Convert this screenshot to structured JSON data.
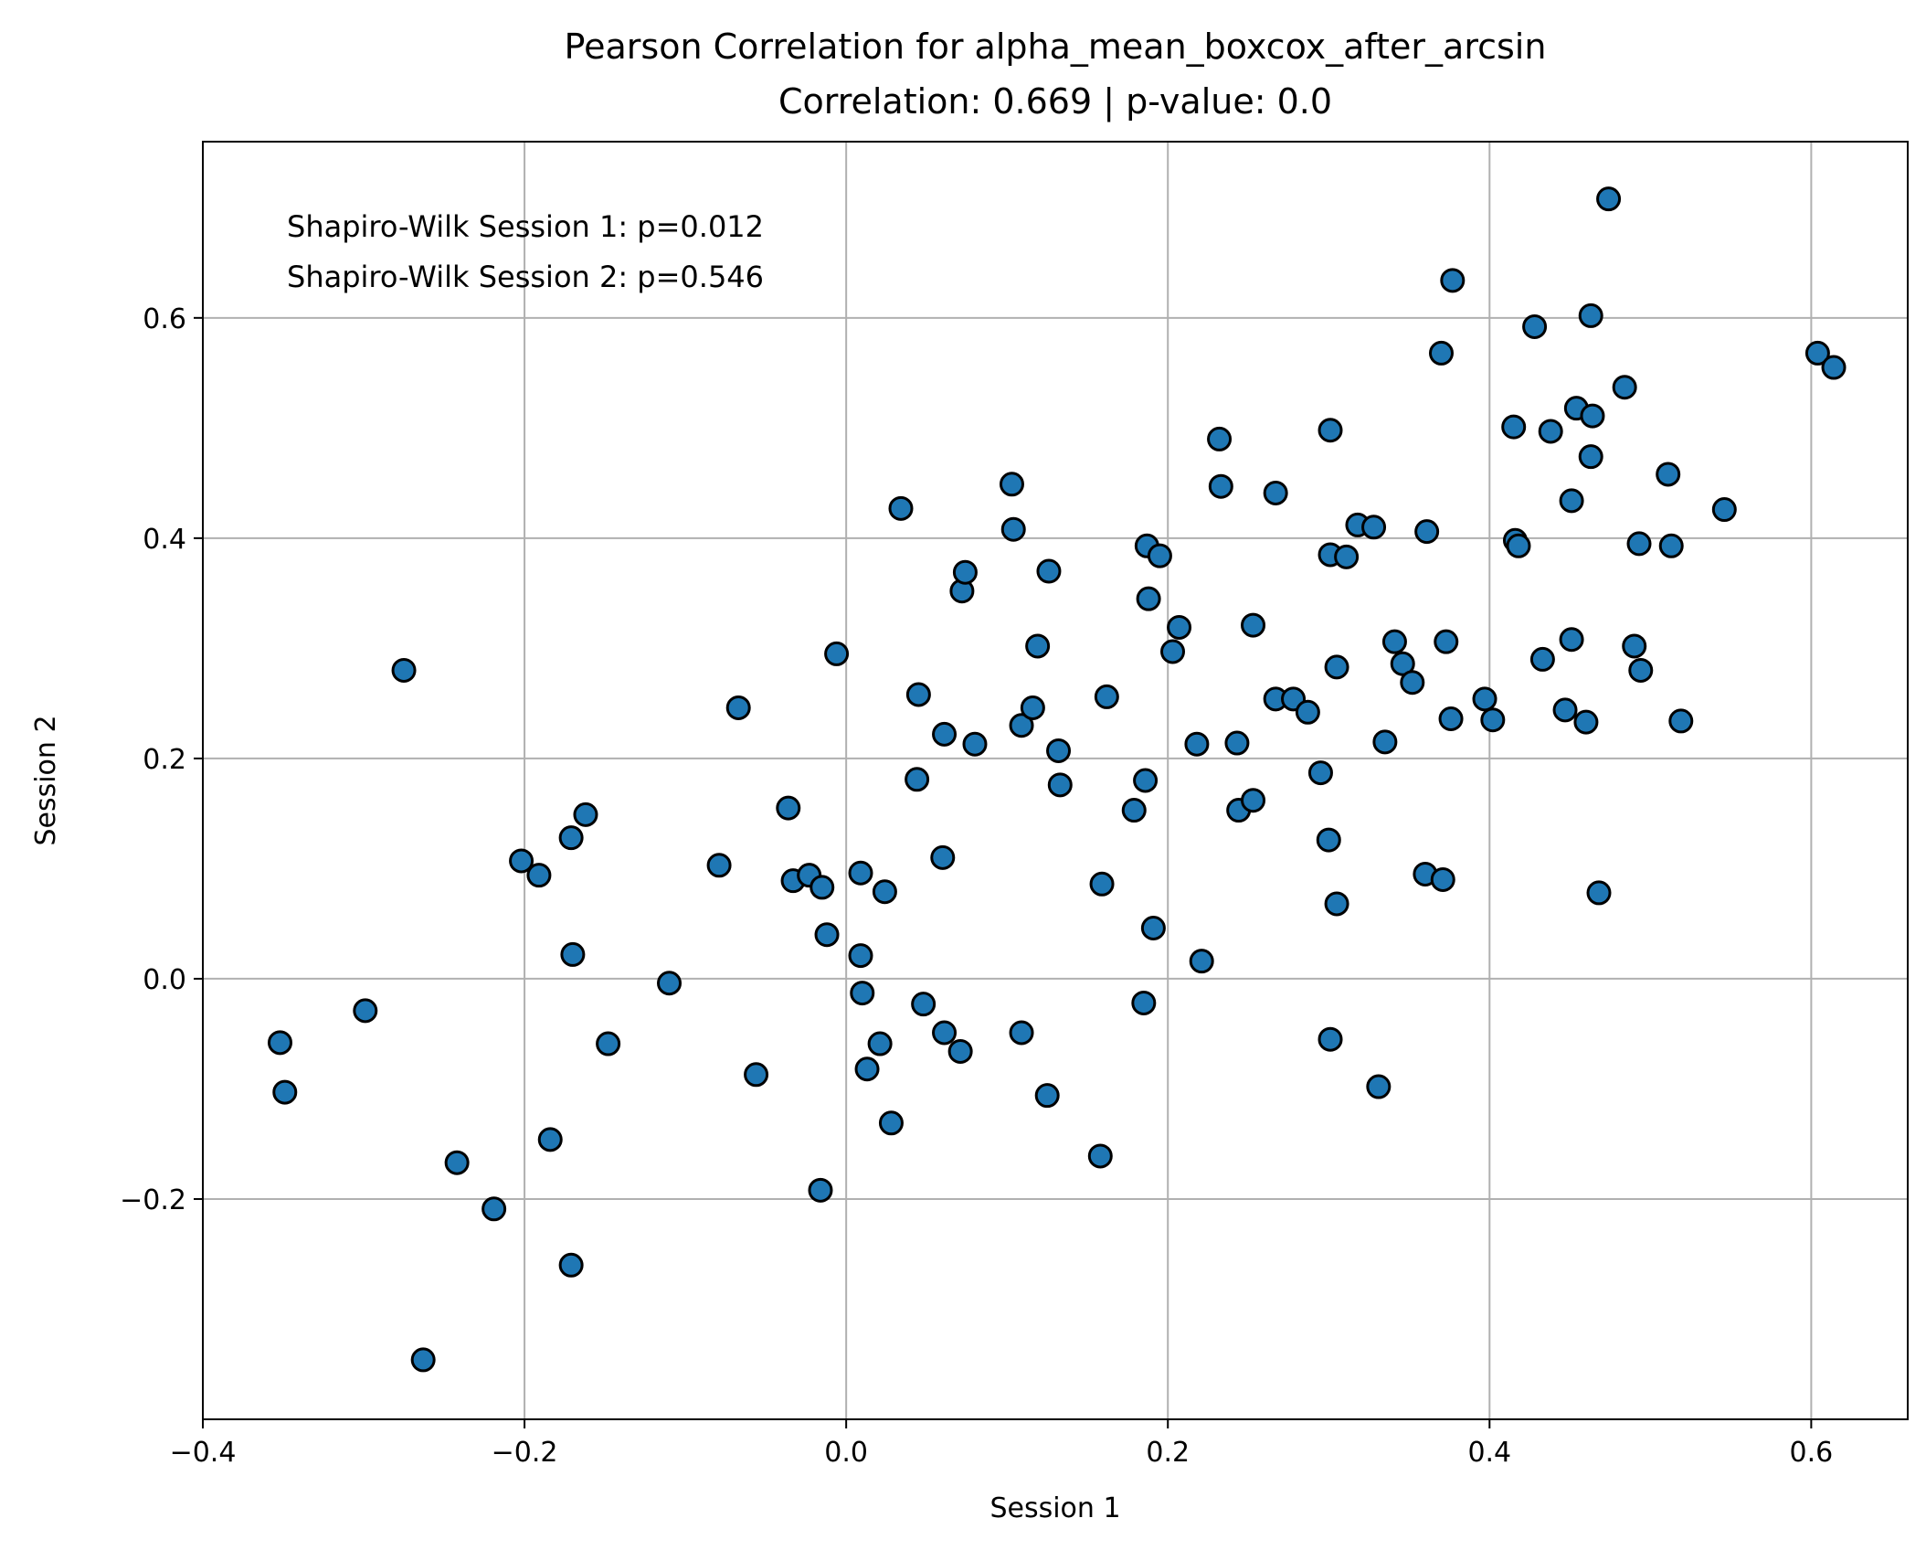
{
  "chart_data": {
    "type": "scatter",
    "title": "Pearson Correlation for alpha_mean_boxcox_after_arcsin",
    "subtitle": "Correlation: 0.669 | p-value: 0.0",
    "xlabel": "Session 1",
    "ylabel": "Session 2",
    "xlim": [
      -0.4,
      0.66
    ],
    "ylim": [
      -0.4,
      0.76
    ],
    "xticks": [
      -0.4,
      -0.2,
      0.0,
      0.2,
      0.4,
      0.6
    ],
    "yticks": [
      -0.2,
      0.0,
      0.2,
      0.4,
      0.6
    ],
    "xtick_labels": [
      "−0.4",
      "−0.2",
      "0.0",
      "0.2",
      "0.4",
      "0.6"
    ],
    "ytick_labels": [
      "−0.2",
      "0.0",
      "0.2",
      "0.4",
      "0.6"
    ],
    "grid": true,
    "annotations": [
      "Shapiro-Wilk Session 1: p=0.012",
      "Shapiro-Wilk Session 2: p=0.546"
    ],
    "marker_color": "#1f77b4",
    "marker_edge": "#000000",
    "points": [
      [
        -0.352,
        -0.058
      ],
      [
        -0.349,
        -0.103
      ],
      [
        -0.299,
        -0.029
      ],
      [
        -0.275,
        0.28
      ],
      [
        -0.263,
        -0.346
      ],
      [
        -0.242,
        -0.167
      ],
      [
        -0.219,
        -0.209
      ],
      [
        -0.202,
        0.107
      ],
      [
        -0.191,
        0.094
      ],
      [
        -0.184,
        -0.146
      ],
      [
        -0.171,
        0.128
      ],
      [
        -0.17,
        0.022
      ],
      [
        -0.171,
        -0.26
      ],
      [
        -0.162,
        0.149
      ],
      [
        -0.148,
        -0.059
      ],
      [
        -0.11,
        -0.004
      ],
      [
        -0.079,
        0.103
      ],
      [
        -0.067,
        0.246
      ],
      [
        -0.056,
        -0.087
      ],
      [
        -0.036,
        0.155
      ],
      [
        -0.033,
        0.089
      ],
      [
        -0.023,
        0.094
      ],
      [
        -0.016,
        -0.192
      ],
      [
        -0.015,
        0.083
      ],
      [
        -0.012,
        0.04
      ],
      [
        -0.006,
        0.295
      ],
      [
        0.009,
        0.096
      ],
      [
        0.009,
        0.021
      ],
      [
        0.01,
        -0.013
      ],
      [
        0.013,
        -0.082
      ],
      [
        0.021,
        -0.059
      ],
      [
        0.024,
        0.079
      ],
      [
        0.028,
        -0.131
      ],
      [
        0.034,
        0.427
      ],
      [
        0.044,
        0.181
      ],
      [
        0.045,
        0.258
      ],
      [
        0.048,
        -0.023
      ],
      [
        0.06,
        0.11
      ],
      [
        0.061,
        -0.049
      ],
      [
        0.061,
        0.222
      ],
      [
        0.071,
        -0.066
      ],
      [
        0.072,
        0.352
      ],
      [
        0.074,
        0.369
      ],
      [
        0.08,
        0.213
      ],
      [
        0.103,
        0.449
      ],
      [
        0.104,
        0.408
      ],
      [
        0.109,
        0.23
      ],
      [
        0.109,
        -0.049
      ],
      [
        0.116,
        0.246
      ],
      [
        0.119,
        0.302
      ],
      [
        0.125,
        -0.106
      ],
      [
        0.126,
        0.37
      ],
      [
        0.132,
        0.207
      ],
      [
        0.133,
        0.176
      ],
      [
        0.158,
        -0.161
      ],
      [
        0.159,
        0.086
      ],
      [
        0.162,
        0.256
      ],
      [
        0.179,
        0.153
      ],
      [
        0.185,
        -0.022
      ],
      [
        0.186,
        0.18
      ],
      [
        0.187,
        0.393
      ],
      [
        0.188,
        0.345
      ],
      [
        0.191,
        0.046
      ],
      [
        0.195,
        0.384
      ],
      [
        0.203,
        0.297
      ],
      [
        0.207,
        0.319
      ],
      [
        0.218,
        0.213
      ],
      [
        0.221,
        0.016
      ],
      [
        0.232,
        0.49
      ],
      [
        0.233,
        0.447
      ],
      [
        0.243,
        0.214
      ],
      [
        0.244,
        0.153
      ],
      [
        0.253,
        0.162
      ],
      [
        0.253,
        0.321
      ],
      [
        0.267,
        0.441
      ],
      [
        0.267,
        0.254
      ],
      [
        0.278,
        0.254
      ],
      [
        0.287,
        0.242
      ],
      [
        0.295,
        0.187
      ],
      [
        0.3,
        0.126
      ],
      [
        0.301,
        -0.055
      ],
      [
        0.301,
        0.498
      ],
      [
        0.301,
        0.385
      ],
      [
        0.305,
        0.068
      ],
      [
        0.305,
        0.283
      ],
      [
        0.311,
        0.383
      ],
      [
        0.318,
        0.412
      ],
      [
        0.328,
        0.41
      ],
      [
        0.331,
        -0.098
      ],
      [
        0.335,
        0.215
      ],
      [
        0.341,
        0.306
      ],
      [
        0.346,
        0.286
      ],
      [
        0.352,
        0.269
      ],
      [
        0.36,
        0.095
      ],
      [
        0.361,
        0.406
      ],
      [
        0.37,
        0.568
      ],
      [
        0.371,
        0.09
      ],
      [
        0.373,
        0.306
      ],
      [
        0.376,
        0.236
      ],
      [
        0.377,
        0.634
      ],
      [
        0.397,
        0.254
      ],
      [
        0.402,
        0.235
      ],
      [
        0.415,
        0.501
      ],
      [
        0.416,
        0.398
      ],
      [
        0.418,
        0.393
      ],
      [
        0.428,
        0.592
      ],
      [
        0.433,
        0.29
      ],
      [
        0.438,
        0.497
      ],
      [
        0.447,
        0.244
      ],
      [
        0.451,
        0.434
      ],
      [
        0.451,
        0.308
      ],
      [
        0.454,
        0.518
      ],
      [
        0.46,
        0.233
      ],
      [
        0.463,
        0.602
      ],
      [
        0.463,
        0.474
      ],
      [
        0.464,
        0.511
      ],
      [
        0.468,
        0.078
      ],
      [
        0.474,
        0.708
      ],
      [
        0.484,
        0.537
      ],
      [
        0.49,
        0.302
      ],
      [
        0.493,
        0.395
      ],
      [
        0.494,
        0.28
      ],
      [
        0.511,
        0.458
      ],
      [
        0.513,
        0.393
      ],
      [
        0.519,
        0.234
      ],
      [
        0.546,
        0.426
      ],
      [
        0.604,
        0.568
      ],
      [
        0.614,
        0.555
      ]
    ]
  }
}
